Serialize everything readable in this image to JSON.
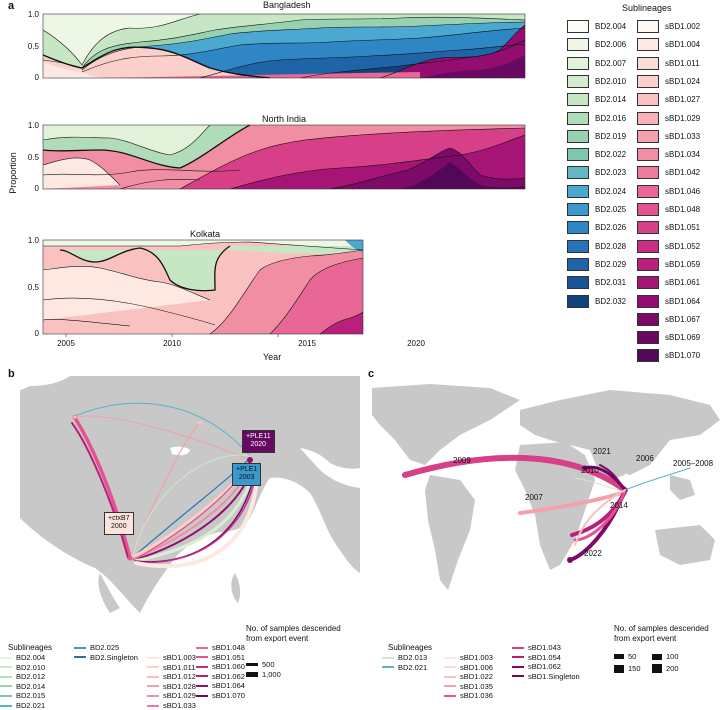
{
  "panel_a": {
    "letter": "a",
    "y_label": "Proportion",
    "x_label": "Year",
    "charts": [
      {
        "title": "Bangladesh",
        "id": "bd"
      },
      {
        "title": "North India",
        "id": "ni"
      },
      {
        "title": "Kolkata",
        "id": "kk"
      }
    ],
    "y_ticks": [
      "0",
      "0.5",
      "1.0"
    ],
    "x_ticks": [
      "2005",
      "2010",
      "2015",
      "2020"
    ],
    "legend_title": "Sublineages",
    "bd_legend": [
      "BD2.004",
      "BD2.006",
      "BD2.007",
      "BD2.010",
      "BD2.014",
      "BD2.016",
      "BD2.019",
      "BD2.022",
      "BD2.023",
      "BD2.024",
      "BD2.025",
      "BD2.026",
      "BD2.028",
      "BD2.029",
      "BD2.031",
      "BD2.032"
    ],
    "bd_colors": [
      "#fbfdf6",
      "#eef6e6",
      "#e2f1d9",
      "#d4ecce",
      "#c6e6c4",
      "#b0dcb9",
      "#98d1b0",
      "#7ec6b0",
      "#63b7c3",
      "#4ba8d0",
      "#3a98cc",
      "#2f86c4",
      "#2674b6",
      "#1e64a7",
      "#175396",
      "#10437e"
    ],
    "sbd_legend": [
      "sBD1.002",
      "sBD1.004",
      "sBD1.011",
      "sBD1.024",
      "sBD1.027",
      "sBD1.029",
      "sBD1.033",
      "sBD1.034",
      "sBD1.042",
      "sBD1.046",
      "sBD1.048",
      "sBD1.051",
      "sBD1.052",
      "sBD1.059",
      "sBD1.061",
      "sBD1.064",
      "sBD1.067",
      "sBD1.069",
      "sBD1.070"
    ],
    "sbd_colors": [
      "#fff7f3",
      "#fde9e2",
      "#fcdcd6",
      "#fbcfca",
      "#f9c2c0",
      "#f7b2b6",
      "#f5a0ac",
      "#f28ea4",
      "#ee7b9d",
      "#e96796",
      "#e2538f",
      "#d73f88",
      "#c92e82",
      "#b9207c",
      "#a61476",
      "#930d70",
      "#7d0a69",
      "#680862",
      "#520759"
    ]
  },
  "panel_b": {
    "letter": "b",
    "tag_ple11": "+PLE11",
    "tag_ple11_year": "2020",
    "tag_ple1": "+PLE1",
    "tag_ple1_year": "2003",
    "tag_ctxb7": "+ctxB7",
    "tag_ctxb7_year": "2000",
    "legend_title": "Sublineages",
    "legend_col1": [
      {
        "label": "BD2.004",
        "color": "#e8f4e0"
      },
      {
        "label": "BD2.010",
        "color": "#cfe9c8"
      },
      {
        "label": "BD2.012",
        "color": "#b5ddbf"
      },
      {
        "label": "BD2.014",
        "color": "#9bd2b7"
      },
      {
        "label": "BD2.015",
        "color": "#7fc5b6"
      },
      {
        "label": "BD2.021",
        "color": "#58b3c9"
      }
    ],
    "legend_col2": [
      {
        "label": "BD2.025",
        "color": "#3a98cc"
      },
      {
        "label": "BD2.Singleton",
        "color": "#2674b6"
      }
    ],
    "legend_col3": [
      {
        "label": "sBD1.003",
        "color": "#fde9e2"
      },
      {
        "label": "sBD1.011",
        "color": "#fbcfca"
      },
      {
        "label": "sBD1.012",
        "color": "#f9c2c0"
      },
      {
        "label": "sBD1.028",
        "color": "#f5a0ac"
      },
      {
        "label": "sBD1.029",
        "color": "#f28ea4"
      },
      {
        "label": "sBD1.033",
        "color": "#ee7b9d"
      }
    ],
    "legend_col4": [
      {
        "label": "sBD1.048",
        "color": "#e96796"
      },
      {
        "label": "sBD1.051",
        "color": "#e2538f"
      },
      {
        "label": "sBD1.060",
        "color": "#c92e82"
      },
      {
        "label": "sBD1.062",
        "color": "#b9207c"
      },
      {
        "label": "sBD1.064",
        "color": "#930d70"
      },
      {
        "label": "sBD1.070",
        "color": "#680862"
      }
    ],
    "size_title": "No. of samples descended from export event",
    "size_entries": [
      "500",
      "1,000"
    ]
  },
  "panel_c": {
    "letter": "c",
    "years": [
      "2009",
      "2021",
      "2006",
      "2005–2008",
      "2010",
      "2007",
      "2014",
      "2022"
    ],
    "legend_title": "Sublineages",
    "legend_col1": [
      {
        "label": "BD2.013",
        "color": "#cfe9c8"
      },
      {
        "label": "BD2.021",
        "color": "#58b3c9"
      }
    ],
    "legend_col2": [
      {
        "label": "sBD1.003",
        "color": "#fde9e2"
      },
      {
        "label": "sBD1.006",
        "color": "#fcdcd6"
      },
      {
        "label": "sBD1.022",
        "color": "#f9c2c0"
      },
      {
        "label": "sBD1.035",
        "color": "#f5a0ac"
      },
      {
        "label": "sBD1.036",
        "color": "#e2538f"
      }
    ],
    "legend_col3": [
      {
        "label": "sBD1.043",
        "color": "#d73f88"
      },
      {
        "label": "sBD1.054",
        "color": "#b9207c"
      },
      {
        "label": "sBD1.062",
        "color": "#7d0a69"
      },
      {
        "label": "sBD1.Singleton",
        "color": "#680862"
      }
    ],
    "size_title": "No. of samples descended from export event",
    "size_entries": [
      "50",
      "100",
      "150",
      "200"
    ]
  }
}
